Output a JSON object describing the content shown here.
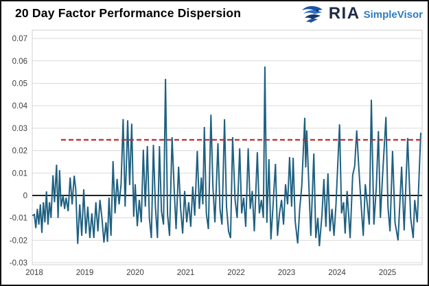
{
  "header": {
    "title": "20 Day Factor Performance Dispersion",
    "logo": {
      "brand": "RIA",
      "product": "SimpleVisor",
      "brand_color": "#1e2a44",
      "product_color": "#2e7bbf",
      "eagle_dark": "#16386e",
      "eagle_mid": "#1d53a4",
      "eagle_light": "#2f6fc4"
    }
  },
  "chart_data": {
    "type": "line",
    "title": "20 Day Factor Performance Dispersion",
    "xlabel": "",
    "ylabel": "",
    "grid": true,
    "legend": false,
    "line_color": "#1f6080",
    "grid_color": "#d9d9d9",
    "axis_text_color": "#3d3d3d",
    "x_range": [
      2017.959,
      2025.687
    ],
    "y_range": [
      -0.0309,
      0.0737
    ],
    "x_ticks": [
      {
        "label": "2018",
        "value": 2018
      },
      {
        "label": "2019",
        "value": 2019
      },
      {
        "label": "2020",
        "value": 2020
      },
      {
        "label": "2021",
        "value": 2021
      },
      {
        "label": "2022",
        "value": 2022
      },
      {
        "label": "2023",
        "value": 2023
      },
      {
        "label": "2024",
        "value": 2024
      },
      {
        "label": "2025",
        "value": 2025
      }
    ],
    "y_ticks": [
      {
        "label": "0.07",
        "value": 0.07
      },
      {
        "label": "0.06",
        "value": 0.06
      },
      {
        "label": "0.05",
        "value": 0.05
      },
      {
        "label": "0.04",
        "value": 0.04
      },
      {
        "label": "0.03",
        "value": 0.03
      },
      {
        "label": "0.02",
        "value": 0.02
      },
      {
        "label": "0.01",
        "value": 0.01
      },
      {
        "label": "0",
        "value": 0
      },
      {
        "label": "-0.01",
        "value": -0.01
      },
      {
        "label": "-0.02",
        "value": -0.02
      },
      {
        "label": "-0.03",
        "value": -0.03
      }
    ],
    "reference_lines": [
      {
        "name": "zero-line",
        "value": 0,
        "color": "#000000",
        "style": "solid",
        "width": 1.7,
        "x_start": 2017.959,
        "x_end": 2025.687
      },
      {
        "name": "dispersion-threshold",
        "value": 0.0248,
        "color": "#c02a2a",
        "style": "dashed",
        "width": 2.2,
        "x_start": 2018.53,
        "x_end": 2025.687
      }
    ],
    "series": [
      {
        "name": "20 Day Factor Performance Dispersion",
        "color": "#1f6080",
        "points": [
          [
            2017.96,
            -0.009
          ],
          [
            2018.0,
            -0.0085
          ],
          [
            2018.03,
            -0.0146
          ],
          [
            2018.06,
            -0.006
          ],
          [
            2018.09,
            -0.013
          ],
          [
            2018.12,
            -0.004
          ],
          [
            2018.15,
            -0.0167
          ],
          [
            2018.18,
            -0.003
          ],
          [
            2018.21,
            -0.012
          ],
          [
            2018.24,
            0.0018
          ],
          [
            2018.27,
            -0.013
          ],
          [
            2018.3,
            -0.003
          ],
          [
            2018.33,
            -0.01
          ],
          [
            2018.37,
            0.009
          ],
          [
            2018.4,
            -0.003
          ],
          [
            2018.44,
            0.0137
          ],
          [
            2018.47,
            -0.01
          ],
          [
            2018.5,
            0.0113
          ],
          [
            2018.53,
            -0.005
          ],
          [
            2018.57,
            0.0
          ],
          [
            2018.6,
            -0.006
          ],
          [
            2018.63,
            -0.001
          ],
          [
            2018.67,
            -0.007
          ],
          [
            2018.71,
            0.008
          ],
          [
            2018.75,
            -0.004
          ],
          [
            2018.79,
            0.0088
          ],
          [
            2018.82,
            0.003
          ],
          [
            2018.86,
            -0.0216
          ],
          [
            2018.9,
            -0.004
          ],
          [
            2018.94,
            -0.018
          ],
          [
            2018.98,
            0.0027
          ],
          [
            2019.02,
            -0.017
          ],
          [
            2019.06,
            -0.005
          ],
          [
            2019.1,
            -0.019
          ],
          [
            2019.14,
            -0.008
          ],
          [
            2019.18,
            -0.019
          ],
          [
            2019.22,
            -0.003
          ],
          [
            2019.26,
            -0.016
          ],
          [
            2019.3,
            -0.002
          ],
          [
            2019.34,
            -0.01
          ],
          [
            2019.38,
            -0.021
          ],
          [
            2019.42,
            -0.012
          ],
          [
            2019.45,
            -0.0207
          ],
          [
            2019.48,
            -0.001
          ],
          [
            2019.52,
            -0.018
          ],
          [
            2019.56,
            0.0153
          ],
          [
            2019.6,
            -0.008
          ],
          [
            2019.64,
            0.0074
          ],
          [
            2019.68,
            -0.004
          ],
          [
            2019.72,
            0.005
          ],
          [
            2019.76,
            0.0341
          ],
          [
            2019.8,
            -0.005
          ],
          [
            2019.85,
            0.0335
          ],
          [
            2019.89,
            0.0046
          ],
          [
            2019.93,
            0.032
          ],
          [
            2019.97,
            -0.0095
          ],
          [
            2020.0,
            0.005
          ],
          [
            2020.04,
            -0.0137
          ],
          [
            2020.08,
            -0.002
          ],
          [
            2020.12,
            -0.012
          ],
          [
            2020.16,
            0.0204
          ],
          [
            2020.2,
            -0.005
          ],
          [
            2020.24,
            0.022
          ],
          [
            2020.28,
            -0.01
          ],
          [
            2020.32,
            -0.019
          ],
          [
            2020.36,
            0.0226
          ],
          [
            2020.4,
            -0.005
          ],
          [
            2020.44,
            -0.019
          ],
          [
            2020.48,
            0.022
          ],
          [
            2020.52,
            -0.007
          ],
          [
            2020.56,
            -0.013
          ],
          [
            2020.6,
            0.052
          ],
          [
            2020.64,
            -0.0085
          ],
          [
            2020.68,
            -0.018
          ],
          [
            2020.73,
            0.026
          ],
          [
            2020.77,
            0.004
          ],
          [
            2020.81,
            -0.015
          ],
          [
            2020.86,
            0.0128
          ],
          [
            2020.9,
            -0.006
          ],
          [
            2020.94,
            -0.017
          ],
          [
            2020.98,
            0.002
          ],
          [
            2021.02,
            -0.012
          ],
          [
            2021.06,
            -0.003
          ],
          [
            2021.1,
            -0.014
          ],
          [
            2021.14,
            0.004
          ],
          [
            2021.18,
            -0.009
          ],
          [
            2021.23,
            0.0198
          ],
          [
            2021.27,
            -0.006
          ],
          [
            2021.31,
            0.008
          ],
          [
            2021.34,
            -0.004
          ],
          [
            2021.37,
            0.0305
          ],
          [
            2021.41,
            -0.008
          ],
          [
            2021.45,
            -0.015
          ],
          [
            2021.5,
            0.036
          ],
          [
            2021.54,
            0.004
          ],
          [
            2021.58,
            -0.012
          ],
          [
            2021.61,
            0.005
          ],
          [
            2021.64,
            0.0233
          ],
          [
            2021.68,
            -0.006
          ],
          [
            2021.72,
            -0.013
          ],
          [
            2021.77,
            0.034
          ],
          [
            2021.81,
            -0.005
          ],
          [
            2021.85,
            -0.016
          ],
          [
            2021.89,
            -0.019
          ],
          [
            2021.93,
            0.026
          ],
          [
            2021.98,
            -0.002
          ],
          [
            2022.02,
            -0.01
          ],
          [
            2022.07,
            0.021
          ],
          [
            2022.11,
            -0.008
          ],
          [
            2022.15,
            -0.001
          ],
          [
            2022.19,
            -0.014
          ],
          [
            2022.24,
            0.021
          ],
          [
            2022.28,
            -0.006
          ],
          [
            2022.32,
            0.002
          ],
          [
            2022.36,
            -0.016
          ],
          [
            2022.42,
            0.0193
          ],
          [
            2022.46,
            -0.008
          ],
          [
            2022.5,
            -0.002
          ],
          [
            2022.54,
            -0.01
          ],
          [
            2022.57,
            0.0575
          ],
          [
            2022.61,
            -0.0122
          ],
          [
            2022.65,
            0.0162
          ],
          [
            2022.69,
            -0.0196
          ],
          [
            2022.73,
            -0.005
          ],
          [
            2022.78,
            0.0141
          ],
          [
            2022.82,
            -0.018
          ],
          [
            2022.86,
            -0.008
          ],
          [
            2022.9,
            -0.002
          ],
          [
            2022.94,
            -0.013
          ],
          [
            2022.98,
            0.005
          ],
          [
            2023.02,
            -0.004
          ],
          [
            2023.06,
            0.0171
          ],
          [
            2023.1,
            -0.005
          ],
          [
            2023.13,
            0.0168
          ],
          [
            2023.17,
            -0.0113
          ],
          [
            2023.22,
            -0.0214
          ],
          [
            2023.26,
            -0.006
          ],
          [
            2023.3,
            0.004
          ],
          [
            2023.36,
            0.0346
          ],
          [
            2023.38,
            0.0125
          ],
          [
            2023.4,
            0.029
          ],
          [
            2023.44,
            0.006
          ],
          [
            2023.48,
            -0.018
          ],
          [
            2023.54,
            0.0187
          ],
          [
            2023.58,
            -0.019
          ],
          [
            2023.62,
            -0.01
          ],
          [
            2023.65,
            -0.0226
          ],
          [
            2023.7,
            -0.009
          ],
          [
            2023.74,
            0.0073
          ],
          [
            2023.78,
            -0.014
          ],
          [
            2023.82,
            0.0098
          ],
          [
            2023.86,
            -0.016
          ],
          [
            2023.9,
            -0.006
          ],
          [
            2023.94,
            -0.018
          ],
          [
            2023.98,
            -0.004
          ],
          [
            2024.05,
            0.0317
          ],
          [
            2024.09,
            -0.008
          ],
          [
            2024.13,
            -0.003
          ],
          [
            2024.16,
            -0.017
          ],
          [
            2024.2,
            0.002
          ],
          [
            2024.26,
            -0.019
          ],
          [
            2024.31,
            0.009
          ],
          [
            2024.35,
            0.013
          ],
          [
            2024.39,
            0.029
          ],
          [
            2024.43,
            0.013
          ],
          [
            2024.48,
            -0.005
          ],
          [
            2024.52,
            -0.018
          ],
          [
            2024.56,
            0.005
          ],
          [
            2024.6,
            -0.004
          ],
          [
            2024.64,
            -0.013
          ],
          [
            2024.68,
            0.0427
          ],
          [
            2024.73,
            -0.013
          ],
          [
            2024.78,
            0.004
          ],
          [
            2024.82,
            0.0287
          ],
          [
            2024.86,
            -0.01
          ],
          [
            2024.9,
            0.008
          ],
          [
            2024.97,
            0.035
          ],
          [
            2025.01,
            -0.005
          ],
          [
            2025.05,
            -0.016
          ],
          [
            2025.1,
            0.0198
          ],
          [
            2025.15,
            -0.012
          ],
          [
            2025.21,
            -0.02
          ],
          [
            2025.28,
            0.0128
          ],
          [
            2025.33,
            -0.0156
          ],
          [
            2025.4,
            0.0256
          ],
          [
            2025.46,
            -0.01
          ],
          [
            2025.51,
            -0.019
          ],
          [
            2025.54,
            -0.002
          ],
          [
            2025.59,
            -0.012
          ],
          [
            2025.66,
            0.028
          ]
        ]
      }
    ]
  }
}
